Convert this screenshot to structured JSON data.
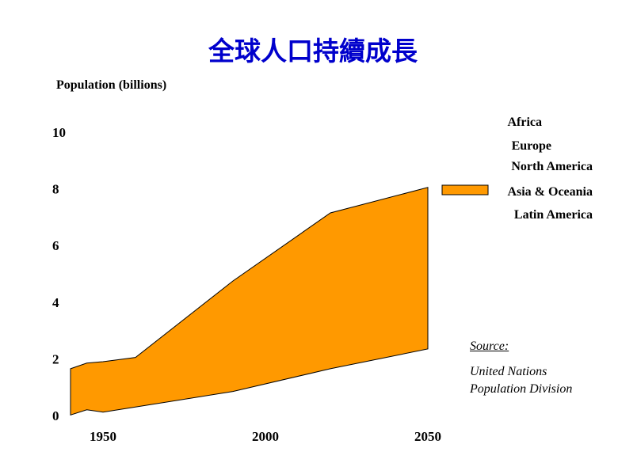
{
  "chart_data": {
    "type": "area",
    "title": "全球人口持續成長",
    "ylabel": "Population (billions)",
    "xlabel": "",
    "x": [
      1940,
      1945,
      1950,
      1960,
      1990,
      2020,
      2050
    ],
    "ylim": [
      0,
      10
    ],
    "y_ticks": [
      0,
      2,
      4,
      6,
      8,
      10
    ],
    "x_ticks": [
      1950,
      2000,
      2050
    ],
    "series": [
      {
        "name": "Africa",
        "values": null,
        "color": null
      },
      {
        "name": "Europe",
        "values": null,
        "color": null
      },
      {
        "name": "North America",
        "values": null,
        "color": null
      },
      {
        "name": "Asia & Oceania",
        "lower": [
          0.02,
          0.2,
          0.12,
          0.3,
          0.85,
          1.65,
          2.35
        ],
        "upper": [
          1.65,
          1.85,
          1.9,
          2.05,
          4.75,
          7.15,
          8.05
        ],
        "color": "#ff9900"
      },
      {
        "name": "Latin America",
        "values": null,
        "color": null
      }
    ],
    "legend_position": "right",
    "source": {
      "label": "Source:",
      "line1": "United Nations",
      "line2": "Population Division"
    }
  }
}
